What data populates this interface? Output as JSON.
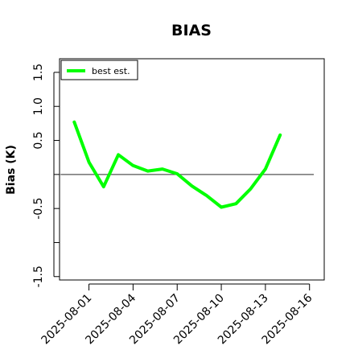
{
  "chart_data": {
    "type": "line",
    "title": "BIAS",
    "xlabel": "",
    "ylabel": "Bias (K)",
    "x": [
      "2025-07-31",
      "2025-08-01",
      "2025-08-02",
      "2025-08-03",
      "2025-08-04",
      "2025-08-05",
      "2025-08-06",
      "2025-08-07",
      "2025-08-08",
      "2025-08-09",
      "2025-08-10",
      "2025-08-11",
      "2025-08-12",
      "2025-08-13",
      "2025-08-14"
    ],
    "series": [
      {
        "name": "best est.",
        "color": "#00ff00",
        "values": [
          0.77,
          0.18,
          -0.18,
          0.29,
          0.13,
          0.05,
          0.08,
          0.01,
          -0.17,
          -0.31,
          -0.48,
          -0.43,
          -0.21,
          0.08,
          0.58
        ]
      }
    ],
    "reference_line": {
      "y": 0.0,
      "color": "#555555"
    },
    "xlim": [
      "2025-07-30",
      "2025-08-17"
    ],
    "ylim": [
      -1.55,
      1.7
    ],
    "yticks": [
      1.5,
      1.0,
      0.5,
      -0.5,
      -1.5
    ],
    "ytick_labels": [
      "1.5",
      "1.0",
      "0.5",
      "-0.5",
      "-1.5"
    ],
    "yticks_unlabeled": [
      0.0,
      -1.0
    ],
    "xticks": [
      "2025-08-01",
      "2025-08-04",
      "2025-08-07",
      "2025-08-10",
      "2025-08-13",
      "2025-08-16"
    ],
    "legend_position": "top-left",
    "grid": false
  }
}
